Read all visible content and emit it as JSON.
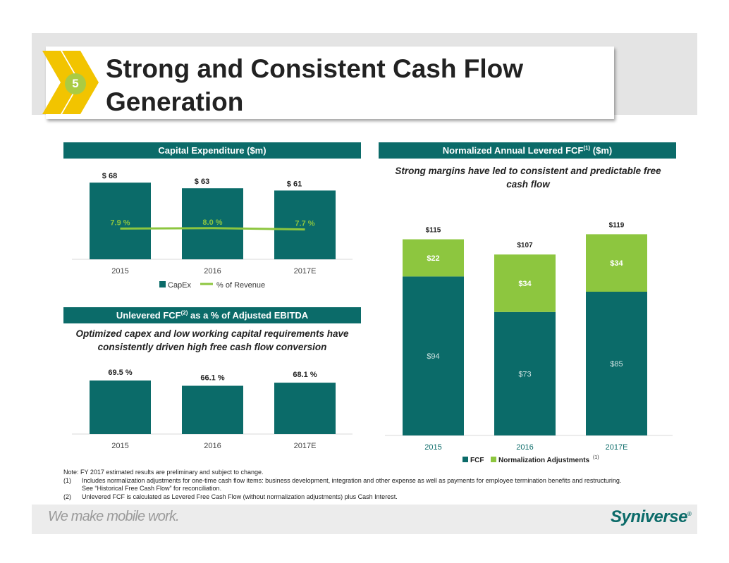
{
  "slide": {
    "title": "Strong and Consistent Cash Flow Generation",
    "badge_number": "5",
    "tagline": "We make mobile work.",
    "logo": "Syniverse",
    "logo_mark": "®"
  },
  "colors": {
    "teal": "#0b6b69",
    "lime": "#8dc63f",
    "line_green": "#8dc63f",
    "badge": "#aacb43"
  },
  "capex": {
    "header": "Capital Expenditure ($m)",
    "legend": [
      "CapEx",
      "% of Revenue"
    ]
  },
  "unlevered": {
    "header_main": "Unlevered FCF",
    "header_sup": "(2)",
    "header_tail": " as a % of Adjusted EBITDA",
    "subtitle": "Optimized capex and low working capital requirements have consistently driven high free cash flow conversion"
  },
  "fcf": {
    "header_main": "Normalized Annual Levered FCF",
    "header_sup": "(1)",
    "header_tail": " ($m)",
    "subtitle": "Strong margins have led to consistent and predictable free cash flow",
    "legend_fcf": "FCF",
    "legend_norm": "Normalization Adjustments",
    "legend_norm_sup": "(1)"
  },
  "notes": {
    "note": "Note: FY 2017 estimated results are preliminary and subject to change.",
    "items": [
      {
        "num": "(1)",
        "text": "Includes normalization adjustments for one-time cash flow items: business development, integration and other expense as well as payments for employee termination benefits and restructuring."
      },
      {
        "num": "",
        "text": "See “Historical Free Cash Flow” for reconciliation."
      },
      {
        "num": "(2)",
        "text": "Unlevered FCF is calculated as Levered Free Cash Flow (without normalization adjustments) plus Cash Interest."
      }
    ]
  },
  "chart_data": [
    {
      "id": "capex",
      "type": "bar",
      "title": "Capital Expenditure ($m)",
      "categories": [
        "2015",
        "2016",
        "2017E"
      ],
      "series": [
        {
          "name": "CapEx",
          "values": [
            68,
            63,
            61
          ],
          "labels": [
            "$ 68",
            "$ 63",
            "$ 61"
          ]
        },
        {
          "name": "% of Revenue",
          "type": "line",
          "values": [
            7.9,
            8.0,
            7.7
          ],
          "labels": [
            "7.9 %",
            "8.0 %",
            "7.7 %"
          ]
        }
      ],
      "ylim": [
        0,
        75
      ]
    },
    {
      "id": "unlevered",
      "type": "bar",
      "title": "Unlevered FCF(2) as a % of Adjusted EBITDA",
      "categories": [
        "2015",
        "2016",
        "2017E"
      ],
      "values": [
        69.5,
        66.1,
        68.1
      ],
      "labels": [
        "69.5 %",
        "66.1 %",
        "68.1 %"
      ],
      "ylim": [
        0,
        75
      ]
    },
    {
      "id": "fcf",
      "type": "bar",
      "stacked": true,
      "title": "Normalized Annual Levered FCF(1) ($m)",
      "categories": [
        "2015",
        "2016",
        "2017E"
      ],
      "series": [
        {
          "name": "FCF",
          "values": [
            94,
            73,
            85
          ],
          "labels": [
            "$94",
            "$73",
            "$85"
          ]
        },
        {
          "name": "Normalization Adjustments",
          "values": [
            22,
            34,
            34
          ],
          "labels": [
            "$22",
            "$34",
            "$34"
          ]
        }
      ],
      "totals": [
        "$115",
        "$107",
        "$119"
      ],
      "ylim": [
        0,
        125
      ]
    }
  ]
}
